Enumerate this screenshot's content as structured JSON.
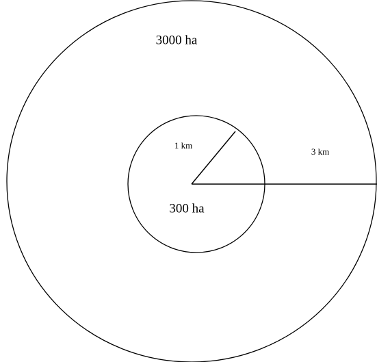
{
  "outer_circle": {
    "area_label": "3000 ha",
    "radius_label": "3 km"
  },
  "inner_circle": {
    "area_label": "300 ha",
    "radius_label": "1 km"
  }
}
